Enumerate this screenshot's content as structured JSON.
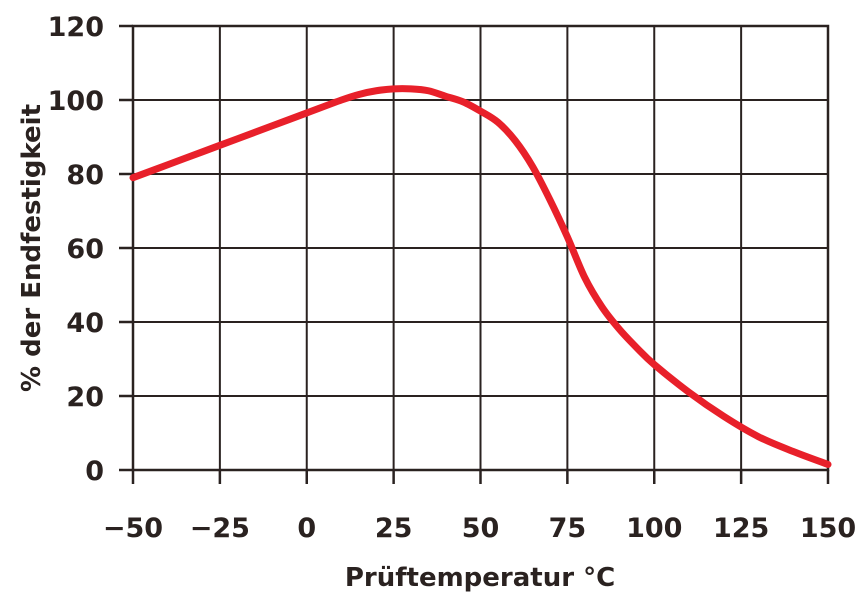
{
  "chart_data": {
    "type": "line",
    "title": "",
    "xlabel": "Prüftemperatur °C",
    "ylabel": "% der Endfestigkeit",
    "xlim": [
      -50,
      150
    ],
    "ylim": [
      0,
      120
    ],
    "xticks": [
      -50,
      -25,
      0,
      25,
      50,
      75,
      100,
      125,
      150
    ],
    "yticks": [
      0,
      20,
      40,
      60,
      80,
      100,
      120
    ],
    "xtick_labels": [
      "−50",
      "−25",
      "0",
      "25",
      "50",
      "75",
      "100",
      "125",
      "150"
    ],
    "ytick_labels": [
      "0",
      "20",
      "40",
      "60",
      "80",
      "100",
      "120"
    ],
    "grid": true,
    "series": [
      {
        "color": "#e8202a",
        "x": [
          -50,
          -40,
          -30,
          -20,
          -10,
          0,
          10,
          15,
          20,
          25,
          30,
          35,
          40,
          45,
          50,
          55,
          60,
          65,
          70,
          75,
          80,
          85,
          90,
          95,
          100,
          110,
          120,
          130,
          140,
          150
        ],
        "y": [
          79,
          82.5,
          86,
          89.5,
          93,
          96.5,
          100,
          101.5,
          102.5,
          103,
          103,
          102.5,
          101,
          99.5,
          97,
          94,
          89,
          82,
          73,
          63,
          52,
          44,
          38,
          33,
          28.5,
          21,
          14.5,
          9,
          5,
          1.5
        ]
      }
    ]
  }
}
